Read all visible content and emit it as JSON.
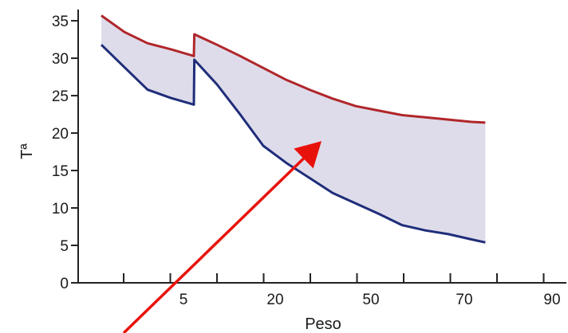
{
  "chart_data": {
    "type": "area",
    "title": "",
    "xlabel": "Peso",
    "ylabel": "Tª",
    "x_tick_labels": [
      "5",
      "20",
      "50",
      "70",
      "90"
    ],
    "y_ticks": [
      0,
      5,
      10,
      15,
      20,
      25,
      30,
      35
    ],
    "ylim": [
      0,
      36.5
    ],
    "grid": false,
    "series": [
      {
        "role": "upper",
        "color": "#b0262a",
        "points": [
          [
            0.0,
            35.7
          ],
          [
            0.5,
            33.5
          ],
          [
            1.0,
            32.0
          ],
          [
            1.5,
            31.2
          ],
          [
            2.0,
            30.3
          ],
          [
            2.01,
            33.2
          ],
          [
            2.5,
            31.8
          ],
          [
            3.0,
            30.3
          ],
          [
            3.5,
            28.7
          ],
          [
            4.0,
            27.1
          ],
          [
            4.5,
            25.8
          ],
          [
            5.0,
            24.6
          ],
          [
            5.5,
            23.6
          ],
          [
            6.0,
            23.0
          ],
          [
            6.5,
            22.4
          ],
          [
            7.0,
            22.1
          ],
          [
            7.5,
            21.8
          ],
          [
            8.0,
            21.5
          ],
          [
            8.3,
            21.4
          ]
        ]
      },
      {
        "role": "lower",
        "color": "#1f2d7a",
        "points": [
          [
            0.0,
            31.8
          ],
          [
            0.5,
            28.8
          ],
          [
            1.0,
            25.8
          ],
          [
            1.5,
            24.7
          ],
          [
            2.0,
            23.8
          ],
          [
            2.01,
            29.8
          ],
          [
            2.5,
            26.5
          ],
          [
            3.0,
            22.5
          ],
          [
            3.5,
            18.3
          ],
          [
            4.0,
            16.0
          ],
          [
            4.5,
            14.0
          ],
          [
            5.0,
            12.0
          ],
          [
            5.5,
            10.6
          ],
          [
            6.0,
            9.2
          ],
          [
            6.5,
            7.7
          ],
          [
            7.0,
            7.0
          ],
          [
            7.5,
            6.5
          ],
          [
            8.0,
            5.8
          ],
          [
            8.3,
            5.4
          ]
        ]
      }
    ],
    "band_fill": "#dedcea",
    "annotation": {
      "type": "arrow",
      "color": "#e8120c",
      "points_to": "shaded band"
    }
  }
}
